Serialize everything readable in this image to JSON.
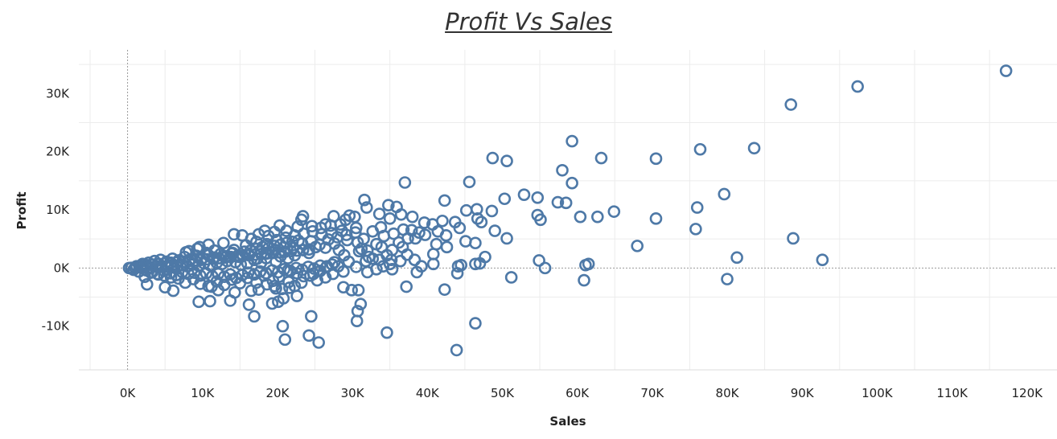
{
  "chart_data": {
    "type": "scatter",
    "title": "Profit Vs Sales",
    "xlabel": "Sales",
    "ylabel": "Profit",
    "xlim": [
      -6500,
      124000
    ],
    "ylim": [
      -17500,
      37500
    ],
    "x_ticks": [
      0,
      10000,
      20000,
      30000,
      40000,
      50000,
      60000,
      70000,
      80000,
      90000,
      100000,
      110000,
      120000
    ],
    "x_tick_labels": [
      "0K",
      "10K",
      "20K",
      "30K",
      "40K",
      "50K",
      "60K",
      "70K",
      "80K",
      "90K",
      "100K",
      "110K",
      "120K"
    ],
    "y_ticks": [
      -10000,
      0,
      10000,
      20000,
      30000
    ],
    "y_tick_labels": [
      "-10K",
      "0K",
      "10K",
      "20K",
      "30K"
    ],
    "grid": true,
    "zero_lines": true,
    "marker": "hollow-circle",
    "color": "#4e79a7",
    "points": [
      [
        117200,
        33900
      ],
      [
        97400,
        31200
      ],
      [
        88500,
        28100
      ],
      [
        59300,
        21800
      ],
      [
        48700,
        18900
      ],
      [
        50600,
        18400
      ],
      [
        63200,
        18900
      ],
      [
        76400,
        20400
      ],
      [
        83600,
        20600
      ],
      [
        70500,
        18800
      ],
      [
        37000,
        14700
      ],
      [
        45600,
        14800
      ],
      [
        58000,
        16800
      ],
      [
        59300,
        14600
      ],
      [
        42300,
        11600
      ],
      [
        50300,
        11900
      ],
      [
        52900,
        12600
      ],
      [
        54700,
        12100
      ],
      [
        57400,
        11300
      ],
      [
        58500,
        11200
      ],
      [
        79600,
        12700
      ],
      [
        76000,
        10400
      ],
      [
        60400,
        8800
      ],
      [
        62700,
        8800
      ],
      [
        64900,
        9700
      ],
      [
        70500,
        8500
      ],
      [
        75800,
        6700
      ],
      [
        68000,
        3800
      ],
      [
        88800,
        5100
      ],
      [
        81300,
        1800
      ],
      [
        92700,
        1400
      ],
      [
        80000,
        -1900
      ],
      [
        61100,
        500
      ],
      [
        61500,
        700
      ],
      [
        60900,
        -2100
      ],
      [
        55700,
        0
      ],
      [
        54900,
        1300
      ],
      [
        46400,
        700
      ],
      [
        47000,
        800
      ],
      [
        51200,
        -1600
      ],
      [
        44100,
        300
      ],
      [
        44000,
        -900
      ],
      [
        43900,
        -14100
      ],
      [
        46400,
        -9500
      ],
      [
        34600,
        -11100
      ],
      [
        25500,
        -12800
      ],
      [
        24200,
        -11600
      ],
      [
        21000,
        -12300
      ],
      [
        20700,
        -10000
      ],
      [
        30600,
        -9100
      ],
      [
        30700,
        -7400
      ],
      [
        31100,
        -6200
      ],
      [
        16900,
        -8300
      ],
      [
        16200,
        -6300
      ],
      [
        24500,
        -8300
      ],
      [
        20100,
        -5800
      ],
      [
        20800,
        -5200
      ],
      [
        22600,
        -4800
      ],
      [
        19300,
        -6100
      ],
      [
        37200,
        -3200
      ],
      [
        30800,
        -3800
      ],
      [
        29900,
        -3800
      ],
      [
        42300,
        -3700
      ],
      [
        47700,
        1900
      ],
      [
        44500,
        500
      ],
      [
        38600,
        -700
      ],
      [
        40800,
        700
      ],
      [
        35300,
        -200
      ],
      [
        39200,
        300
      ],
      [
        28800,
        -3300
      ],
      [
        19800,
        -3500
      ],
      [
        21600,
        -3400
      ],
      [
        9500,
        -5800
      ],
      [
        11000,
        -5700
      ],
      [
        13700,
        -5600
      ],
      [
        6100,
        -3900
      ],
      [
        2600,
        -2800
      ],
      [
        5000,
        -3300
      ],
      [
        33600,
        9300
      ],
      [
        34800,
        10800
      ],
      [
        35900,
        10500
      ],
      [
        31600,
        11700
      ],
      [
        31900,
        10400
      ],
      [
        36500,
        9200
      ],
      [
        38000,
        8800
      ],
      [
        35000,
        8500
      ],
      [
        39600,
        7800
      ],
      [
        40700,
        7500
      ],
      [
        42000,
        8100
      ],
      [
        43700,
        7900
      ],
      [
        45200,
        9900
      ],
      [
        46600,
        10100
      ],
      [
        46700,
        8500
      ],
      [
        47200,
        7900
      ],
      [
        48600,
        9800
      ],
      [
        49000,
        6400
      ],
      [
        50600,
        5100
      ],
      [
        42500,
        5600
      ],
      [
        41400,
        6300
      ],
      [
        44300,
        6900
      ],
      [
        45100,
        4600
      ],
      [
        46400,
        4300
      ],
      [
        54700,
        9100
      ],
      [
        55100,
        8300
      ],
      [
        36800,
        6600
      ],
      [
        37900,
        6500
      ],
      [
        38900,
        6100
      ],
      [
        38400,
        5100
      ],
      [
        39700,
        5700
      ],
      [
        41200,
        4100
      ],
      [
        40800,
        2400
      ],
      [
        42600,
        3600
      ],
      [
        38300,
        1400
      ],
      [
        37300,
        2300
      ],
      [
        36400,
        1200
      ],
      [
        35200,
        1400
      ],
      [
        35000,
        700
      ],
      [
        34600,
        2200
      ],
      [
        33600,
        1400
      ],
      [
        32700,
        1600
      ],
      [
        32200,
        1900
      ],
      [
        31200,
        3300
      ],
      [
        30700,
        4400
      ],
      [
        30500,
        6900
      ],
      [
        29600,
        9000
      ],
      [
        29100,
        8300
      ],
      [
        30300,
        8800
      ],
      [
        28400,
        7500
      ],
      [
        27500,
        8900
      ],
      [
        27100,
        7300
      ],
      [
        26400,
        7500
      ],
      [
        25800,
        6900
      ],
      [
        24600,
        7200
      ],
      [
        23200,
        8300
      ],
      [
        23400,
        8900
      ],
      [
        22700,
        7100
      ],
      [
        21200,
        6400
      ],
      [
        20300,
        7300
      ],
      [
        19600,
        6200
      ],
      [
        18800,
        5500
      ],
      [
        18300,
        6400
      ],
      [
        17500,
        5800
      ],
      [
        16500,
        5000
      ],
      [
        15300,
        5600
      ],
      [
        14200,
        5800
      ],
      [
        12800,
        4300
      ],
      [
        10800,
        4000
      ],
      [
        9600,
        3600
      ],
      [
        7800,
        2700
      ],
      [
        27600,
        4200
      ],
      [
        26400,
        3500
      ],
      [
        25100,
        3600
      ],
      [
        24200,
        2600
      ],
      [
        23400,
        3100
      ],
      [
        22300,
        2200
      ],
      [
        21400,
        1700
      ],
      [
        20400,
        2000
      ],
      [
        19800,
        1100
      ],
      [
        18500,
        1700
      ],
      [
        17800,
        900
      ],
      [
        16900,
        1400
      ],
      [
        16000,
        800
      ],
      [
        15100,
        600
      ],
      [
        14400,
        1000
      ],
      [
        13300,
        1200
      ],
      [
        12600,
        700
      ],
      [
        11900,
        900
      ],
      [
        11000,
        500
      ],
      [
        10200,
        800
      ],
      [
        9500,
        400
      ],
      [
        8700,
        600
      ],
      [
        8000,
        300
      ],
      [
        7300,
        500
      ],
      [
        6600,
        200
      ],
      [
        5900,
        400
      ],
      [
        5200,
        300
      ],
      [
        4500,
        200
      ],
      [
        3800,
        300
      ],
      [
        3100,
        100
      ],
      [
        2400,
        200
      ],
      [
        1700,
        100
      ],
      [
        1000,
        50
      ],
      [
        500,
        20
      ],
      [
        200,
        0
      ],
      [
        28200,
        3100
      ],
      [
        29300,
        4800
      ],
      [
        28900,
        2200
      ],
      [
        27600,
        1000
      ],
      [
        26600,
        300
      ],
      [
        25700,
        -500
      ],
      [
        24800,
        -1000
      ],
      [
        23500,
        -1400
      ],
      [
        22600,
        -900
      ],
      [
        21400,
        -400
      ],
      [
        20200,
        -1500
      ],
      [
        19400,
        -2200
      ],
      [
        18200,
        -1300
      ],
      [
        17200,
        -2500
      ],
      [
        16000,
        -1700
      ],
      [
        15000,
        -2600
      ],
      [
        13900,
        -2000
      ],
      [
        12900,
        -2900
      ],
      [
        11900,
        -2300
      ],
      [
        10800,
        -3100
      ],
      [
        9700,
        -2700
      ],
      [
        8800,
        -1900
      ],
      [
        7700,
        -2500
      ],
      [
        6800,
        -1800
      ],
      [
        5800,
        -1600
      ],
      [
        4900,
        -1300
      ],
      [
        4000,
        -1000
      ],
      [
        3100,
        -800
      ],
      [
        2300,
        -1500
      ],
      [
        1500,
        -600
      ],
      [
        800,
        -300
      ],
      [
        32000,
        3000
      ],
      [
        33200,
        4100
      ],
      [
        34200,
        5500
      ],
      [
        35500,
        5900
      ],
      [
        36700,
        3600
      ],
      [
        35300,
        3100
      ],
      [
        34100,
        300
      ],
      [
        33200,
        -200
      ],
      [
        32000,
        -700
      ],
      [
        30500,
        200
      ],
      [
        29500,
        1100
      ],
      [
        28800,
        -600
      ],
      [
        27400,
        -1000
      ],
      [
        26400,
        -1600
      ],
      [
        25300,
        -2100
      ],
      [
        24400,
        -1300
      ],
      [
        23200,
        -2500
      ],
      [
        22300,
        -3100
      ],
      [
        21500,
        -2400
      ],
      [
        20600,
        -3600
      ],
      [
        19600,
        -3100
      ],
      [
        18600,
        -2800
      ],
      [
        17500,
        -3700
      ],
      [
        16500,
        -3900
      ],
      [
        14300,
        -4200
      ],
      [
        12100,
        -3800
      ],
      [
        11200,
        -3200
      ],
      [
        14200,
        3100
      ],
      [
        15800,
        3900
      ],
      [
        17200,
        4500
      ],
      [
        18600,
        4100
      ],
      [
        19900,
        4800
      ],
      [
        21100,
        5200
      ],
      [
        22300,
        5600
      ],
      [
        23500,
        5900
      ],
      [
        24700,
        6300
      ],
      [
        25900,
        5800
      ],
      [
        8200,
        2900
      ],
      [
        9300,
        3300
      ],
      [
        10500,
        2600
      ],
      [
        11600,
        3000
      ],
      [
        12800,
        2100
      ],
      [
        13900,
        2500
      ],
      [
        15000,
        1900
      ],
      [
        16200,
        2300
      ],
      [
        17300,
        1600
      ],
      [
        18500,
        2600
      ],
      [
        19700,
        3100
      ],
      [
        20900,
        2800
      ],
      [
        22100,
        3500
      ],
      [
        23300,
        4200
      ],
      [
        24500,
        4600
      ],
      [
        25600,
        4000
      ],
      [
        26800,
        4900
      ],
      [
        28000,
        5300
      ],
      [
        29200,
        5700
      ],
      [
        30400,
        6100
      ],
      [
        31500,
        5000
      ],
      [
        32700,
        6300
      ],
      [
        33800,
        7000
      ],
      [
        30900,
        2900
      ],
      [
        31800,
        1200
      ],
      [
        33900,
        3600
      ],
      [
        36200,
        4400
      ],
      [
        37400,
        5100
      ],
      [
        28600,
        6400
      ],
      [
        27200,
        6000
      ],
      [
        2000,
        700
      ],
      [
        2800,
        900
      ],
      [
        3600,
        1200
      ],
      [
        4400,
        1400
      ],
      [
        5200,
        1100
      ],
      [
        6000,
        1600
      ],
      [
        6800,
        1300
      ],
      [
        7600,
        1900
      ],
      [
        8400,
        1500
      ],
      [
        9200,
        2100
      ],
      [
        10000,
        1700
      ],
      [
        10800,
        2200
      ],
      [
        11600,
        1800
      ],
      [
        12400,
        2400
      ],
      [
        13200,
        2000
      ],
      [
        14000,
        2600
      ],
      [
        14800,
        2200
      ],
      [
        15600,
        2800
      ],
      [
        16400,
        3000
      ],
      [
        17200,
        3300
      ],
      [
        18000,
        3600
      ],
      [
        18800,
        3400
      ],
      [
        19600,
        3800
      ],
      [
        20400,
        4000
      ],
      [
        21200,
        4300
      ],
      [
        22000,
        4500
      ],
      [
        22800,
        4700
      ],
      [
        2500,
        -400
      ],
      [
        3300,
        -700
      ],
      [
        4100,
        -1100
      ],
      [
        4900,
        -500
      ],
      [
        5700,
        -900
      ],
      [
        6500,
        -1200
      ],
      [
        7300,
        -700
      ],
      [
        8100,
        -1000
      ],
      [
        8900,
        -800
      ],
      [
        9700,
        -1300
      ],
      [
        10500,
        -900
      ],
      [
        11300,
        -1400
      ],
      [
        12100,
        -1000
      ],
      [
        12900,
        -1500
      ],
      [
        13700,
        -1100
      ],
      [
        14500,
        -1700
      ],
      [
        15300,
        -1200
      ],
      [
        16100,
        -800
      ],
      [
        16900,
        -1100
      ],
      [
        17700,
        -600
      ],
      [
        18500,
        -900
      ],
      [
        19300,
        -400
      ],
      [
        20100,
        -700
      ],
      [
        20900,
        -200
      ],
      [
        21700,
        -500
      ],
      [
        22500,
        0
      ],
      [
        23300,
        -300
      ],
      [
        24100,
        200
      ],
      [
        24900,
        -100
      ],
      [
        25700,
        400
      ],
      [
        26500,
        100
      ],
      [
        27300,
        600
      ],
      [
        28100,
        300
      ],
      [
        1200,
        300
      ],
      [
        1800,
        400
      ],
      [
        2600,
        500
      ],
      [
        3400,
        600
      ],
      [
        4200,
        700
      ],
      [
        5000,
        800
      ],
      [
        5800,
        900
      ],
      [
        6600,
        1000
      ],
      [
        7400,
        1100
      ],
      [
        8200,
        1200
      ],
      [
        9000,
        1300
      ],
      [
        9800,
        1400
      ],
      [
        10600,
        1500
      ],
      [
        11400,
        1600
      ],
      [
        12200,
        1700
      ],
      [
        13000,
        1800
      ],
      [
        13800,
        1900
      ],
      [
        14600,
        2000
      ],
      [
        15400,
        2100
      ],
      [
        16200,
        2200
      ],
      [
        17000,
        2300
      ],
      [
        17800,
        2400
      ],
      [
        18600,
        2500
      ],
      [
        19400,
        2600
      ],
      [
        20200,
        2700
      ],
      [
        21000,
        2800
      ],
      [
        21800,
        2900
      ],
      [
        22600,
        3000
      ],
      [
        23400,
        3100
      ],
      [
        24200,
        3200
      ]
    ]
  }
}
